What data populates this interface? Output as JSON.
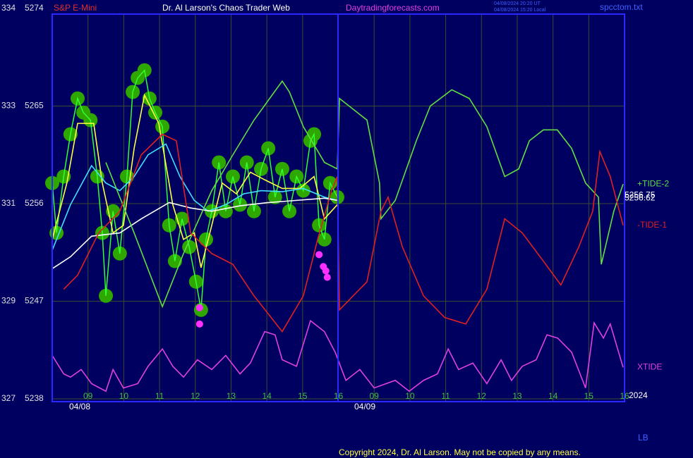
{
  "page": {
    "instrument": "S&P E-Mini",
    "title": "Dr. Al Larson's Chaos Trader Web",
    "site": "Daytradingforecasts.com",
    "time_ut": "04/08/2024 20:20 UT",
    "time_local": "04/08/2024 15:20 Local",
    "file": "spcctom.txt",
    "year": "2024",
    "corner": "LB",
    "copyright": "Copyright 2024, Dr. Al Larson. May not be copied by any means."
  },
  "chart_data": {
    "type": "line",
    "xlim": [
      0,
      16
    ],
    "ylim": [
      5238,
      5274
    ],
    "xticks": [
      {
        "value": 1,
        "label": "09"
      },
      {
        "value": 2,
        "label": "10"
      },
      {
        "value": 3,
        "label": "11"
      },
      {
        "value": 4,
        "label": "12"
      },
      {
        "value": 5,
        "label": "13"
      },
      {
        "value": 6,
        "label": "14"
      },
      {
        "value": 7,
        "label": "15"
      },
      {
        "value": 8,
        "label": "16"
      },
      {
        "value": 9,
        "label": "09"
      },
      {
        "value": 10,
        "label": "10"
      },
      {
        "value": 11,
        "label": "11"
      },
      {
        "value": 12,
        "label": "12"
      },
      {
        "value": 13,
        "label": "13"
      },
      {
        "value": 14,
        "label": "14"
      },
      {
        "value": 15,
        "label": "15"
      },
      {
        "value": 16,
        "label": "16"
      }
    ],
    "yticks": [
      5274,
      5265,
      5256,
      5247,
      5238
    ],
    "ytick_prefixes": [
      "334",
      "333",
      "331",
      "329",
      "327"
    ],
    "grid": true,
    "date_labels": [
      {
        "text": "04/08",
        "x": 0.77
      },
      {
        "text": "04/09",
        "x": 8.74
      }
    ],
    "price_labels": [
      5256.75,
      5256.62
    ],
    "series": [
      {
        "color": "#30ff30",
        "marker_color": "#2ea800",
        "style": "line-blobs",
        "x": [
          0,
          0.12,
          0.32,
          0.51,
          0.71,
          0.87,
          1.07,
          1.26,
          1.4,
          1.5,
          1.7,
          1.89,
          2.09,
          2.25,
          2.39,
          2.58,
          2.72,
          2.88,
          3.08,
          3.27,
          3.43,
          3.63,
          3.83,
          4.02,
          4.16,
          4.3,
          4.46,
          4.66,
          4.85,
          5.05,
          5.25,
          5.44,
          5.64,
          5.84,
          6.04,
          6.23,
          6.43,
          6.63,
          6.83,
          7.02,
          7.22,
          7.32,
          7.46,
          7.61,
          7.77,
          7.97
        ],
        "values": [
          5257.9,
          5253.3,
          5258.5,
          5262.4,
          5265.7,
          5264.4,
          5263.7,
          5258.5,
          5253.3,
          5247.5,
          5255.3,
          5251.4,
          5258.5,
          5266.3,
          5267.6,
          5268.3,
          5265.7,
          5264.4,
          5263.1,
          5254.0,
          5250.7,
          5254.6,
          5252.0,
          5248.8,
          5246.2,
          5252.7,
          5255.3,
          5259.8,
          5255.3,
          5258.5,
          5255.9,
          5259.8,
          5255.3,
          5259.2,
          5261.1,
          5256.6,
          5259.2,
          5255.3,
          5258.5,
          5257.2,
          5261.8,
          5262.4,
          5254.0,
          5252.7,
          5257.9,
          5256.6
        ]
      },
      {
        "color": "#ffff40",
        "style": "line",
        "x": [
          0,
          0.41,
          0.71,
          1.16,
          1.4,
          1.7,
          1.99,
          2.29,
          2.58,
          2.98,
          3.37,
          3.67,
          3.97,
          4.16,
          4.46,
          4.75,
          5.15,
          5.54,
          5.94,
          6.43,
          6.92,
          7.32,
          7.61,
          7.97
        ],
        "values": [
          5252.7,
          5257.9,
          5263.4,
          5263.4,
          5257.9,
          5253.3,
          5254.0,
          5261.1,
          5266.0,
          5263.4,
          5255.9,
          5252.7,
          5253.3,
          5250.1,
          5254.0,
          5257.9,
          5256.9,
          5258.9,
          5258.2,
          5257.4,
          5257.4,
          5258.5,
          5254.6,
          5255.9
        ]
      },
      {
        "color": "#40e0ff",
        "style": "line",
        "x": [
          0,
          0.51,
          1.1,
          1.5,
          1.89,
          2.29,
          2.68,
          3.18,
          3.57,
          3.97,
          4.36,
          4.85,
          5.35,
          5.84,
          6.43,
          7.02,
          7.61,
          7.97
        ],
        "values": [
          5251.7,
          5255.9,
          5259.5,
          5257.9,
          5257.2,
          5258.5,
          5260.5,
          5261.5,
          5258.5,
          5256.3,
          5255.3,
          5255.9,
          5256.9,
          5257.2,
          5257.1,
          5257.4,
          5256.6,
          5256.3
        ]
      },
      {
        "color": "#ffffff",
        "style": "line",
        "x": [
          0,
          0.51,
          1.1,
          1.89,
          2.49,
          3.27,
          3.87,
          4.46,
          5.25,
          6.04,
          6.83,
          7.61,
          7.97
        ],
        "values": [
          5250.0,
          5251.1,
          5253.0,
          5253.3,
          5254.6,
          5256.1,
          5255.6,
          5255.3,
          5255.8,
          5256.1,
          5256.3,
          5256.5,
          5256.3
        ]
      },
      {
        "name": "+TIDE-2",
        "color": "#60e040",
        "style": "line",
        "x": [
          1.5,
          2.29,
          3.08,
          3.67,
          4.46,
          5.05,
          5.64,
          6.43,
          6.63,
          7.02,
          7.61,
          7.97,
          8.03,
          8.8,
          9.15,
          9.19,
          9.59,
          10.18,
          10.57,
          11.17,
          11.66,
          12.15,
          12.65,
          13.04,
          13.34,
          13.73,
          14.12,
          14.52,
          14.91,
          15.27,
          15.35,
          15.7,
          15.96
        ],
        "values": [
          5259.8,
          5253.3,
          5246.5,
          5251.4,
          5257.2,
          5260.5,
          5263.7,
          5267.3,
          5266.3,
          5263.1,
          5259.8,
          5259.2,
          5265.7,
          5263.7,
          5257.9,
          5254.6,
          5256.3,
          5261.8,
          5265.0,
          5266.5,
          5265.7,
          5263.1,
          5258.5,
          5259.2,
          5261.8,
          5262.8,
          5262.8,
          5261.1,
          5257.9,
          5256.6,
          5250.4,
          5255.3,
          5257.8
        ]
      },
      {
        "name": "-TIDE-1",
        "color": "#e02020",
        "style": "line",
        "x": [
          0.32,
          0.71,
          1.3,
          1.89,
          2.49,
          3.08,
          3.47,
          3.87,
          4.46,
          5.05,
          5.64,
          6.43,
          7.02,
          7.42,
          7.81,
          7.97,
          8.03,
          8.8,
          9.19,
          9.39,
          9.79,
          10.38,
          10.97,
          11.56,
          12.15,
          12.65,
          13.14,
          13.73,
          14.22,
          14.72,
          15.11,
          15.31,
          15.6,
          15.96
        ],
        "values": [
          5248.1,
          5249.4,
          5253.3,
          5255.3,
          5260.5,
          5262.4,
          5261.8,
          5253.3,
          5251.4,
          5250.4,
          5247.5,
          5244.2,
          5247.5,
          5252.7,
          5257.2,
          5258.5,
          5246.2,
          5248.8,
          5255.3,
          5256.6,
          5252.0,
          5247.5,
          5245.5,
          5244.9,
          5248.1,
          5254.6,
          5253.3,
          5250.7,
          5248.5,
          5252.0,
          5255.3,
          5260.8,
          5258.5,
          5254.0
        ]
      },
      {
        "name": "XTIDE",
        "color": "#e040e0",
        "style": "line",
        "x": [
          0,
          0.32,
          0.51,
          0.81,
          1.1,
          1.5,
          1.7,
          1.99,
          2.39,
          2.68,
          3.08,
          3.37,
          3.67,
          4.06,
          4.46,
          4.85,
          5.25,
          5.54,
          5.94,
          6.23,
          6.43,
          6.83,
          7.22,
          7.61,
          7.91,
          8.21,
          8.6,
          9.0,
          9.59,
          9.98,
          10.38,
          10.77,
          11.07,
          11.36,
          11.76,
          12.15,
          12.55,
          12.84,
          13.14,
          13.53,
          13.83,
          14.13,
          14.52,
          14.91,
          15.15,
          15.41,
          15.6,
          15.96
        ],
        "values": [
          5242.0,
          5240.3,
          5240.0,
          5240.7,
          5239.4,
          5238.7,
          5240.7,
          5239.0,
          5239.4,
          5241.0,
          5242.6,
          5241.0,
          5240.0,
          5241.6,
          5240.7,
          5242.0,
          5240.3,
          5241.3,
          5244.2,
          5243.9,
          5241.6,
          5241.0,
          5245.2,
          5244.2,
          5242.3,
          5239.7,
          5240.7,
          5239.0,
          5239.7,
          5238.7,
          5239.7,
          5240.3,
          5242.6,
          5240.7,
          5241.3,
          5239.4,
          5241.6,
          5239.7,
          5241.0,
          5241.6,
          5243.9,
          5243.6,
          5242.3,
          5239.0,
          5245.0,
          5243.6,
          5244.9,
          5240.9
        ]
      },
      {
        "color": "#ff30ff",
        "style": "dots",
        "x": [
          4.12,
          4.12,
          7.46,
          7.58,
          7.65,
          7.69
        ],
        "values": [
          5246.4,
          5244.9,
          5251.3,
          5250.2,
          5249.8,
          5249.2
        ]
      }
    ]
  }
}
